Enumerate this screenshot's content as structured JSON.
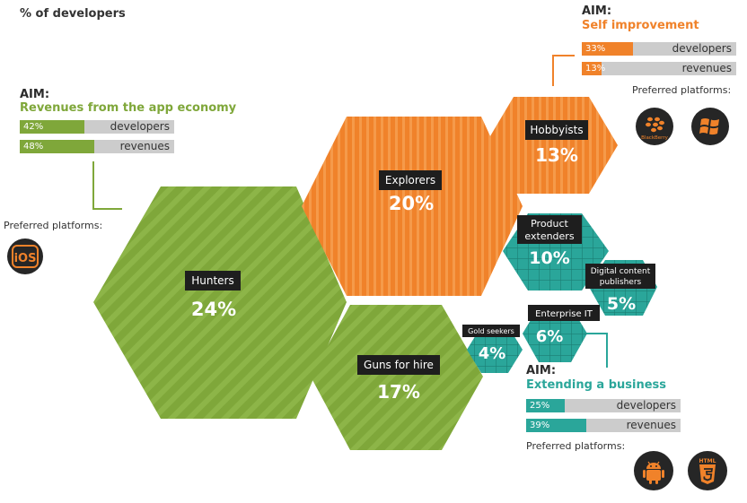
{
  "title": "% of developers",
  "segments": [
    {
      "id": "hunters",
      "label": "Hunters",
      "pct": "24%",
      "color": "#7fa73a"
    },
    {
      "id": "explorers",
      "label": "Explorers",
      "pct": "20%",
      "color": "#f0822a"
    },
    {
      "id": "hobbyists",
      "label": "Hobbyists",
      "pct": "13%",
      "color": "#f0822a"
    },
    {
      "id": "guns",
      "label": "Guns for hire",
      "pct": "17%",
      "color": "#7fa73a"
    },
    {
      "id": "product",
      "label_lines": [
        "Product",
        "extenders"
      ],
      "pct": "10%",
      "color": "#2aa69a"
    },
    {
      "id": "digital",
      "label_lines": [
        "Digital content",
        "publishers"
      ],
      "pct": "5%",
      "color": "#2aa69a"
    },
    {
      "id": "enterprise",
      "label": "Enterprise IT",
      "pct": "6%",
      "color": "#2aa69a"
    },
    {
      "id": "gold",
      "label": "Gold seekers",
      "pct": "4%",
      "color": "#2aa69a"
    }
  ],
  "aims": {
    "green": {
      "aim_label": "AIM:",
      "name": "Revenues from the app economy",
      "color": "#7fa73a",
      "bars": [
        {
          "pct": "42%",
          "value": 42,
          "label": "developers"
        },
        {
          "pct": "48%",
          "value": 48,
          "label": "revenues"
        }
      ],
      "preferred_label": "Preferred platforms:",
      "platforms": [
        "iOS"
      ]
    },
    "orange": {
      "aim_label": "AIM:",
      "name": "Self improvement",
      "color": "#f0822a",
      "bars": [
        {
          "pct": "33%",
          "value": 33,
          "label": "developers"
        },
        {
          "pct": "13%",
          "value": 13,
          "label": "revenues"
        }
      ],
      "preferred_label": "Preferred platforms:",
      "platforms": [
        "BlackBerry",
        "windows-icon"
      ]
    },
    "teal": {
      "aim_label": "AIM:",
      "name": "Extending a business",
      "color": "#2aa69a",
      "bars": [
        {
          "pct": "25%",
          "value": 25,
          "label": "developers"
        },
        {
          "pct": "39%",
          "value": 39,
          "label": "revenues"
        }
      ],
      "preferred_label": "Preferred platforms:",
      "platforms": [
        "android-icon",
        "HTML"
      ]
    }
  }
}
